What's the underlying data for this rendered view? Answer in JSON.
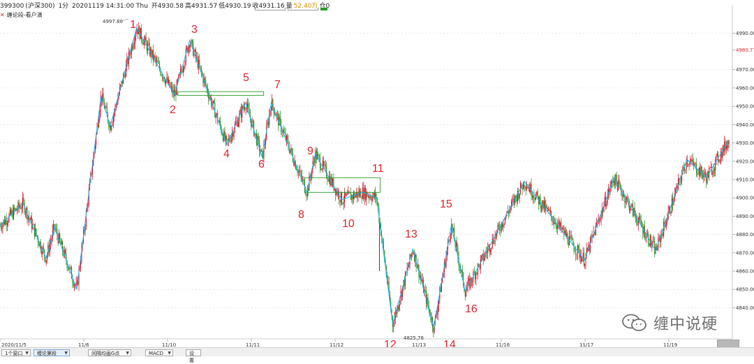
{
  "header": {
    "code": "399300",
    "market": "(沪深300)",
    "period": "1分",
    "datetime": "20201119 14:31:00 Thu",
    "open": "开4930.58",
    "high": "高4931.57",
    "low": "低4930.19",
    "close": "收4931.16",
    "amount_label": "量",
    "amount": "52.40万",
    "hold": "仓0"
  },
  "subtitle": {
    "close_icon": "close-icon",
    "label": "缠论段-看户演"
  },
  "colors": {
    "up": "#d0021b",
    "down": "#1a8a1a",
    "zigzag": "#1ab0e8",
    "accent": "#e0212b",
    "pivot_box": "#2a9a2a"
  },
  "chart_data": {
    "type": "line",
    "title": "",
    "ylim": [
      4823,
      5005
    ],
    "y_ticks": [
      "4990.00",
      "4980.77",
      "4970.00",
      "4960.00",
      "4950.00",
      "4940.00",
      "4930.00",
      "4920.00",
      "4910.00",
      "4900.00",
      "4890.00",
      "4880.00",
      "4870.00",
      "4860.00",
      "4850.00",
      "4840.00"
    ],
    "y_tick_values": [
      4990,
      4980.77,
      4970,
      4960,
      4950,
      4940,
      4930,
      4920,
      4910,
      4900,
      4890,
      4880,
      4870,
      4860,
      4850,
      4840
    ],
    "x_labels": [
      "2020/11/5",
      "11/6",
      "11/10",
      "11/11",
      "11/12",
      "11/13",
      "11/16",
      "11/17",
      "11/19"
    ],
    "annotations": [
      "4997.80",
      "4825.78"
    ],
    "pivot_labels": [
      "1",
      "2",
      "3",
      "4",
      "5",
      "6",
      "7",
      "8",
      "9",
      "10",
      "11",
      "12",
      "13",
      "14",
      "15",
      "16"
    ],
    "zigzag": [
      {
        "i": 0,
        "v": 4885
      },
      {
        "i": 33,
        "v": 4897
      },
      {
        "i": 66,
        "v": 4867
      },
      {
        "i": 78,
        "v": 4884
      },
      {
        "i": 110,
        "v": 4850
      },
      {
        "i": 145,
        "v": 4956
      },
      {
        "i": 158,
        "v": 4939
      },
      {
        "i": 196,
        "v": 4993
      },
      {
        "i": 250,
        "v": 4956
      },
      {
        "i": 272,
        "v": 4986
      },
      {
        "i": 325,
        "v": 4929
      },
      {
        "i": 352,
        "v": 4952
      },
      {
        "i": 376,
        "v": 4922
      },
      {
        "i": 389,
        "v": 4952
      },
      {
        "i": 440,
        "v": 4903
      },
      {
        "i": 452,
        "v": 4924
      },
      {
        "i": 490,
        "v": 4899
      },
      {
        "i": 520,
        "v": 4903
      },
      {
        "i": 540,
        "v": 4900
      },
      {
        "i": 563,
        "v": 4831
      },
      {
        "i": 592,
        "v": 4872
      },
      {
        "i": 622,
        "v": 4829
      },
      {
        "i": 647,
        "v": 4885
      },
      {
        "i": 667,
        "v": 4849
      },
      {
        "i": 752,
        "v": 4909
      },
      {
        "i": 838,
        "v": 4866
      },
      {
        "i": 880,
        "v": 4911
      },
      {
        "i": 940,
        "v": 4871
      },
      {
        "i": 985,
        "v": 4921
      },
      {
        "i": 1013,
        "v": 4911
      },
      {
        "i": 1044,
        "v": 4931
      }
    ],
    "pivot_zones": [
      {
        "from": 255,
        "to": 378,
        "low": 4956,
        "high": 4958
      },
      {
        "from": 437,
        "to": 545,
        "low": 4903,
        "high": 4911
      }
    ]
  },
  "watermark": {
    "icon": "wechat-icon",
    "text": "缠中说硬"
  },
  "bottom_tabs": [
    {
      "label": "1个窗口"
    },
    {
      "label": "缠论第段"
    },
    {
      "label": "间隔均画G点"
    },
    {
      "label": "MACD"
    },
    {
      "label": "设置"
    }
  ]
}
